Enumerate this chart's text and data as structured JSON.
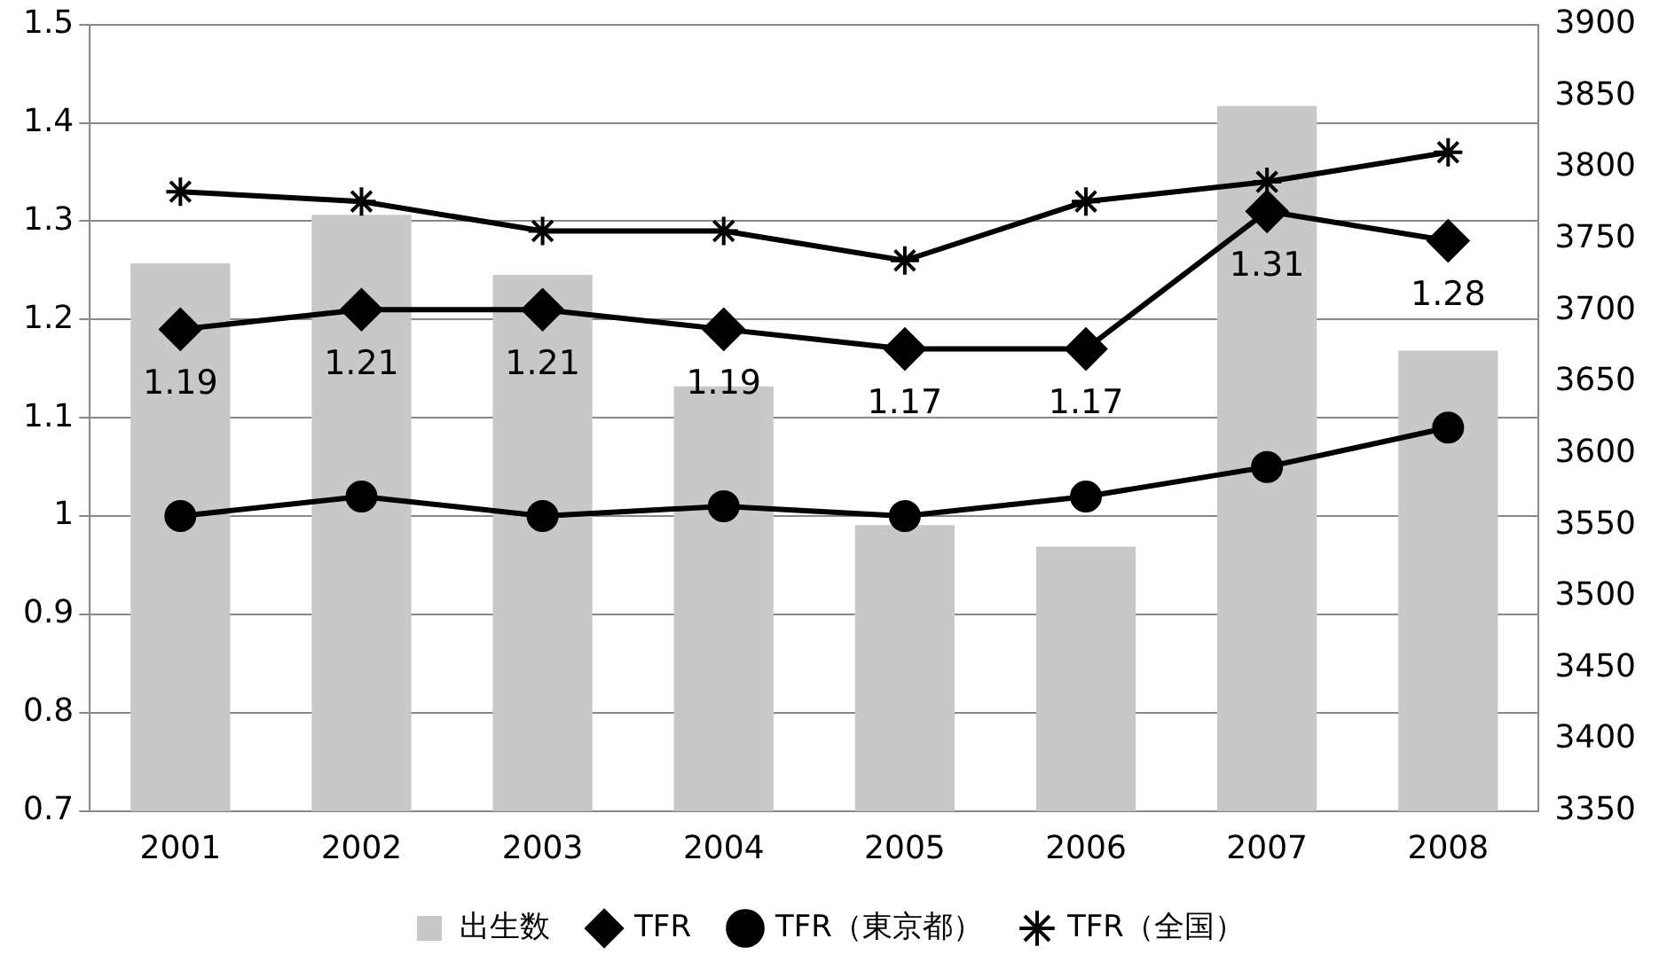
{
  "chart_data": {
    "type": "bar",
    "categories": [
      "2001",
      "2002",
      "2003",
      "2004",
      "2005",
      "2006",
      "2007",
      "2008"
    ],
    "series": [
      {
        "name": "出生数",
        "axis": "y2",
        "color": "#c8c8c8",
        "values": [
          3733,
          3767,
          3725,
          3647,
          3550,
          3535,
          3843,
          3672
        ]
      },
      {
        "name": "TFR",
        "type": "line",
        "color": "#000000",
        "marker": "diamond",
        "values": [
          1.19,
          1.21,
          1.21,
          1.19,
          1.17,
          1.17,
          1.31,
          1.28
        ],
        "value_labels": [
          "1.19",
          "1.21",
          "1.21",
          "1.19",
          "1.17",
          "1.17",
          "1.31",
          "1.28"
        ]
      },
      {
        "name": "TFR（東京都）",
        "type": "line",
        "color": "#000000",
        "marker": "circle",
        "values": [
          1.0,
          1.02,
          1.0,
          1.01,
          1.0,
          1.02,
          1.05,
          1.09
        ]
      },
      {
        "name": "TFR（全国）",
        "type": "line",
        "color": "#000000",
        "marker": "cross",
        "values": [
          1.33,
          1.32,
          1.29,
          1.29,
          1.26,
          1.32,
          1.34,
          1.37
        ]
      }
    ],
    "ylim": [
      0.7,
      1.5
    ],
    "yticks": [
      0.7,
      0.8,
      0.9,
      1,
      1.1,
      1.2,
      1.3,
      1.4,
      1.5
    ],
    "y2lim": [
      3350,
      3900
    ],
    "y2ticks": [
      3350,
      3400,
      3450,
      3500,
      3550,
      3600,
      3650,
      3700,
      3750,
      3800,
      3850,
      3900
    ],
    "grid": "y",
    "legend": "bottom"
  }
}
